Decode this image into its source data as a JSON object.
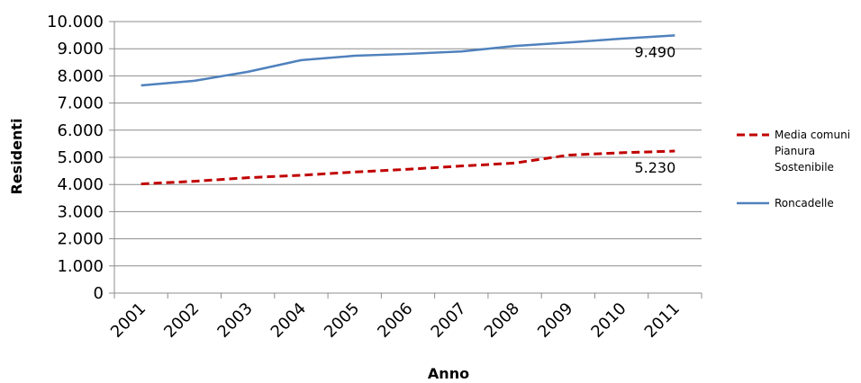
{
  "chart_data": {
    "type": "line",
    "categories": [
      "2001",
      "2002",
      "2003",
      "2004",
      "2005",
      "2006",
      "2007",
      "2008",
      "2009",
      "2010",
      "2011"
    ],
    "series": [
      {
        "name": "Media comuni Pianura Sostenibile",
        "legend_lines": [
          "Media comuni",
          "Pianura",
          "Sostenibile"
        ],
        "values": [
          4020,
          4120,
          4250,
          4340,
          4460,
          4560,
          4680,
          4790,
          5080,
          5170,
          5230
        ],
        "color": "#C00000",
        "dash": true,
        "label": "5.230"
      },
      {
        "name": "Roncadelle",
        "legend_lines": [
          "Roncadelle"
        ],
        "values": [
          7650,
          7820,
          8150,
          8580,
          8740,
          8810,
          8900,
          9100,
          9230,
          9370,
          9490
        ],
        "color": "#4F81BD",
        "dash": false,
        "label": "9.490"
      }
    ],
    "xlabel": "Anno",
    "ylabel": "Residenti",
    "ylim": [
      0,
      10000
    ],
    "yticks": [
      {
        "value": 0,
        "label": "0"
      },
      {
        "value": 1000,
        "label": "1.000"
      },
      {
        "value": 2000,
        "label": "2.000"
      },
      {
        "value": 3000,
        "label": "3.000"
      },
      {
        "value": 4000,
        "label": "4.000"
      },
      {
        "value": 5000,
        "label": "5.000"
      },
      {
        "value": 6000,
        "label": "6.000"
      },
      {
        "value": 7000,
        "label": "7.000"
      },
      {
        "value": 8000,
        "label": "8.000"
      },
      {
        "value": 9000,
        "label": "9.000"
      },
      {
        "value": 10000,
        "label": "10.000"
      }
    ],
    "grid": true,
    "legend_position": "right"
  }
}
